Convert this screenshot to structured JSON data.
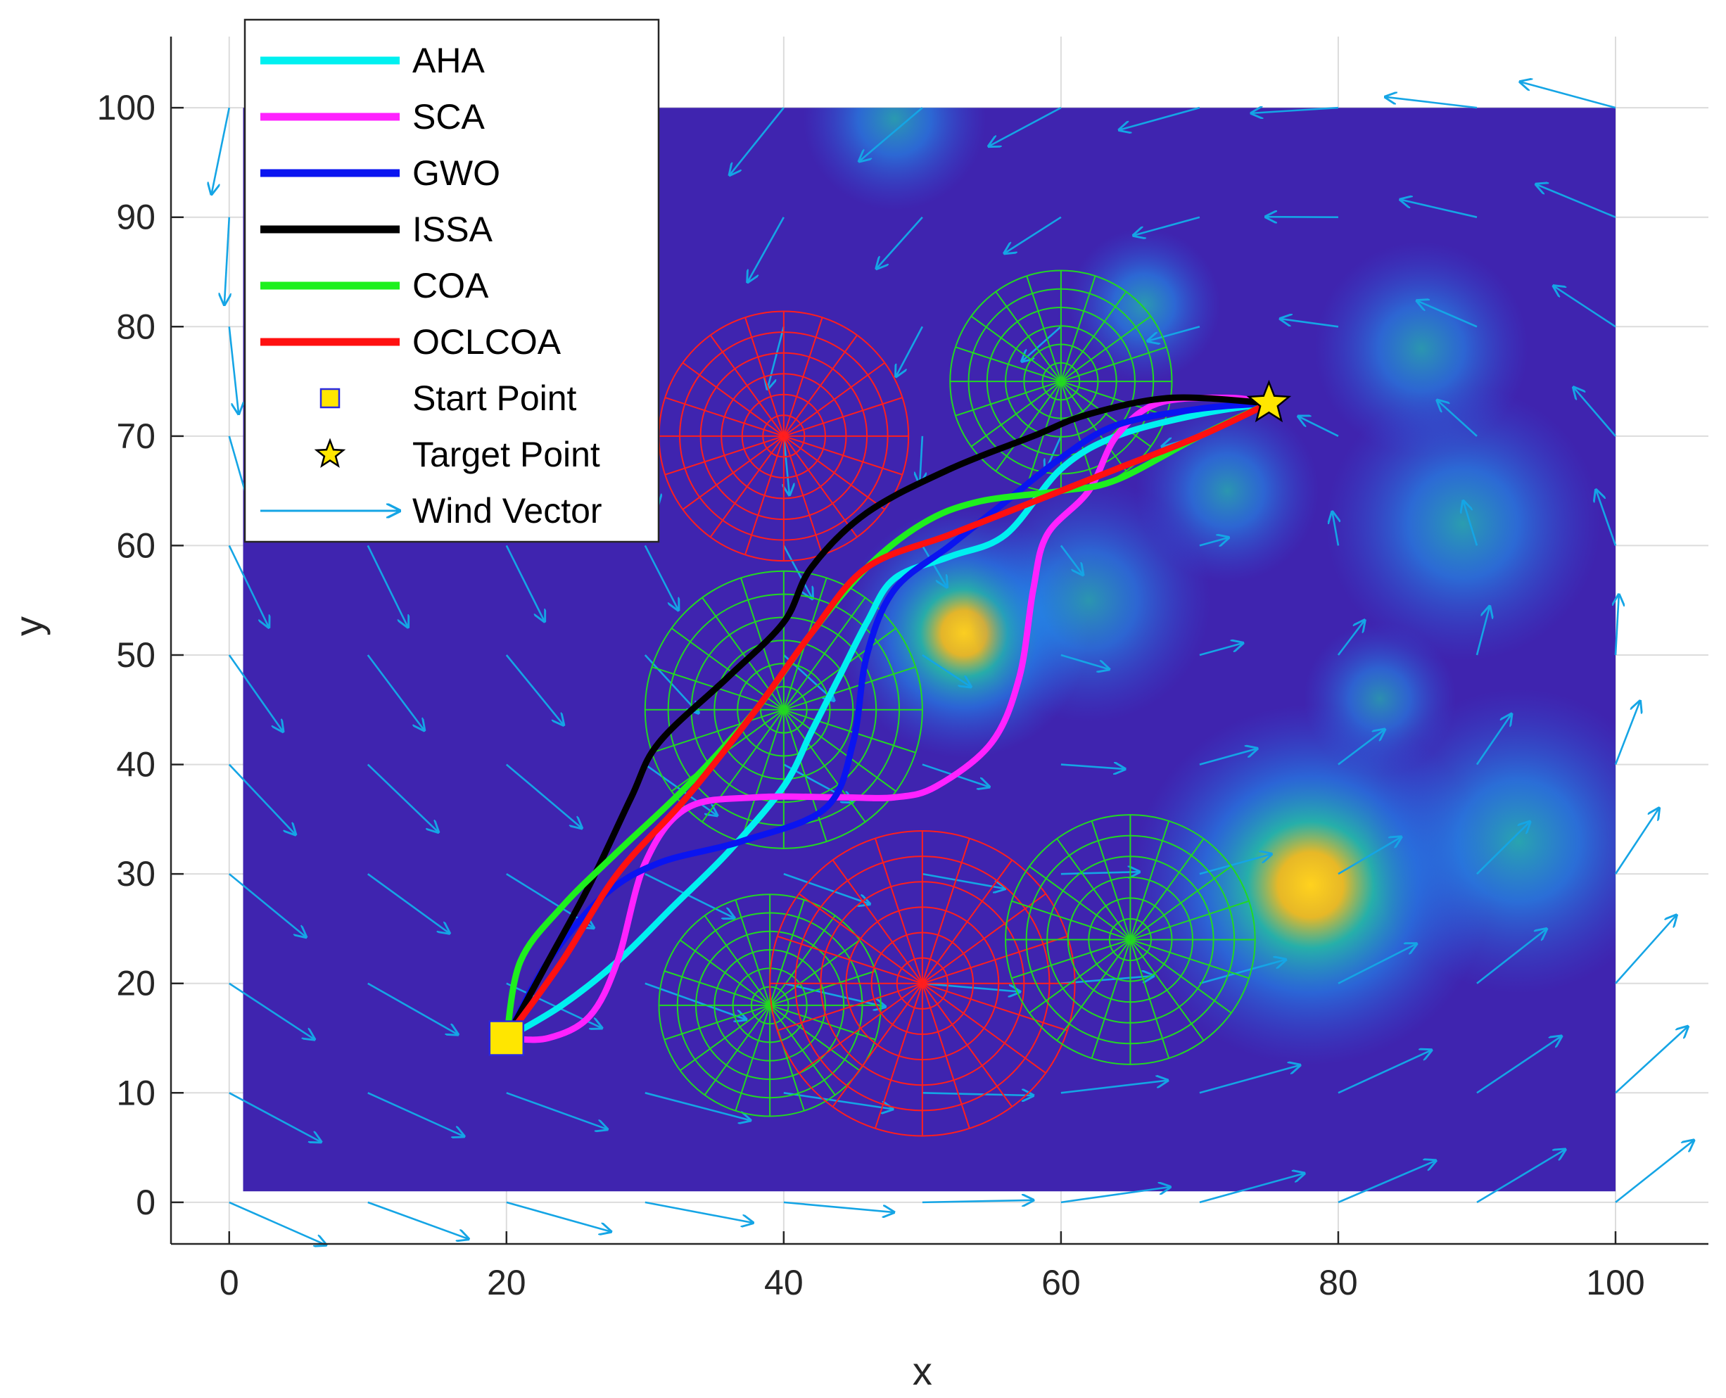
{
  "chart_data": {
    "type": "line",
    "title": "",
    "xlabel": "x",
    "ylabel": "y",
    "xlim": [
      -4.2,
      106.7
    ],
    "ylim": [
      -3.8,
      106.5
    ],
    "xticks": [
      0,
      20,
      40,
      60,
      80,
      100
    ],
    "yticks": [
      0,
      10,
      20,
      30,
      40,
      50,
      60,
      70,
      80,
      90,
      100
    ],
    "grid": true,
    "legend_position": "top-left",
    "background_colors": {
      "low": "#3F24AF",
      "mid": "#1E8CF0",
      "high": "#F0C420"
    },
    "threat_field": [
      {
        "x": 48,
        "y": 99,
        "r": 6,
        "level": 0.45
      },
      {
        "x": 66,
        "y": 82,
        "r": 5,
        "level": 0.45
      },
      {
        "x": 86,
        "y": 78,
        "r": 7,
        "level": 0.4
      },
      {
        "x": 72,
        "y": 65,
        "r": 6,
        "level": 0.4
      },
      {
        "x": 89,
        "y": 62,
        "r": 9,
        "level": 0.5
      },
      {
        "x": 53,
        "y": 52,
        "r": 9,
        "level": 0.95
      },
      {
        "x": 62,
        "y": 55,
        "r": 8,
        "level": 0.4
      },
      {
        "x": 83,
        "y": 46,
        "r": 5,
        "level": 0.3
      },
      {
        "x": 78,
        "y": 29,
        "r": 13,
        "level": 1.0
      },
      {
        "x": 93,
        "y": 33,
        "r": 10,
        "level": 0.6
      }
    ],
    "obstacles": [
      {
        "x": 40,
        "y": 70,
        "r": 9,
        "color": "#FF1E1E"
      },
      {
        "x": 60,
        "y": 75,
        "r": 8,
        "color": "#22D822"
      },
      {
        "x": 40,
        "y": 45,
        "r": 10,
        "color": "#22D822"
      },
      {
        "x": 39,
        "y": 18,
        "r": 8,
        "color": "#22D822"
      },
      {
        "x": 50,
        "y": 20,
        "r": 11,
        "color": "#FF1E1E"
      },
      {
        "x": 65,
        "y": 24,
        "r": 9,
        "color": "#22D822"
      }
    ],
    "start_point": {
      "x": 20,
      "y": 15
    },
    "target_point": {
      "x": 75,
      "y": 73
    },
    "series": [
      {
        "name": "AHA",
        "color": "#00F0F0",
        "points": [
          [
            20,
            15
          ],
          [
            24,
            18
          ],
          [
            28,
            22
          ],
          [
            32,
            27
          ],
          [
            36,
            32
          ],
          [
            40,
            38
          ],
          [
            42,
            43
          ],
          [
            44,
            48
          ],
          [
            46,
            53
          ],
          [
            48,
            57
          ],
          [
            52,
            59
          ],
          [
            56,
            61
          ],
          [
            60,
            67
          ],
          [
            64,
            70
          ],
          [
            70,
            72
          ],
          [
            75,
            73
          ]
        ]
      },
      {
        "name": "SCA",
        "color": "#FF22FF",
        "points": [
          [
            20,
            15
          ],
          [
            23,
            15
          ],
          [
            26,
            17
          ],
          [
            28,
            22
          ],
          [
            30,
            31
          ],
          [
            33,
            36
          ],
          [
            38,
            37
          ],
          [
            44,
            37
          ],
          [
            48,
            37
          ],
          [
            51,
            38
          ],
          [
            55,
            42
          ],
          [
            57,
            48
          ],
          [
            58,
            56
          ],
          [
            59,
            61
          ],
          [
            62,
            65
          ],
          [
            64,
            70
          ],
          [
            67,
            73
          ],
          [
            72,
            73.5
          ],
          [
            75,
            73
          ]
        ]
      },
      {
        "name": "GWO",
        "color": "#0A14F0",
        "points": [
          [
            20,
            15
          ],
          [
            23,
            22
          ],
          [
            27,
            28
          ],
          [
            31,
            31
          ],
          [
            37,
            33
          ],
          [
            43,
            36
          ],
          [
            45,
            42
          ],
          [
            46,
            50
          ],
          [
            48,
            56
          ],
          [
            52,
            60
          ],
          [
            56,
            64
          ],
          [
            60,
            68
          ],
          [
            64,
            71
          ],
          [
            70,
            72.5
          ],
          [
            75,
            73
          ]
        ]
      },
      {
        "name": "ISSA",
        "color": "#000000",
        "points": [
          [
            20,
            15
          ],
          [
            23,
            22
          ],
          [
            26,
            29
          ],
          [
            29,
            37
          ],
          [
            31,
            42
          ],
          [
            36,
            48
          ],
          [
            40,
            53
          ],
          [
            42,
            58
          ],
          [
            46,
            63
          ],
          [
            52,
            67
          ],
          [
            58,
            70
          ],
          [
            62,
            72
          ],
          [
            68,
            73.5
          ],
          [
            75,
            73
          ]
        ]
      },
      {
        "name": "COA",
        "color": "#1EF01E",
        "points": [
          [
            20,
            15
          ],
          [
            21,
            22
          ],
          [
            24,
            27
          ],
          [
            28,
            32
          ],
          [
            33,
            38
          ],
          [
            38,
            45
          ],
          [
            42,
            52
          ],
          [
            46,
            58
          ],
          [
            50,
            62
          ],
          [
            54,
            64
          ],
          [
            60,
            65
          ],
          [
            64,
            66
          ],
          [
            70,
            70
          ],
          [
            75,
            73
          ]
        ]
      },
      {
        "name": "OCLCOA",
        "color": "#FF1010",
        "points": [
          [
            20,
            15
          ],
          [
            24,
            22
          ],
          [
            28,
            30
          ],
          [
            33,
            37
          ],
          [
            38,
            45
          ],
          [
            42,
            52
          ],
          [
            46,
            58
          ],
          [
            52,
            61
          ],
          [
            58,
            64
          ],
          [
            64,
            67
          ],
          [
            70,
            70
          ],
          [
            75,
            73
          ]
        ]
      }
    ],
    "legend": {
      "start_label": "Start Point",
      "target_label": "Target Point",
      "wind_label": "Wind Vector"
    },
    "wind_color": "#15A5E5"
  }
}
